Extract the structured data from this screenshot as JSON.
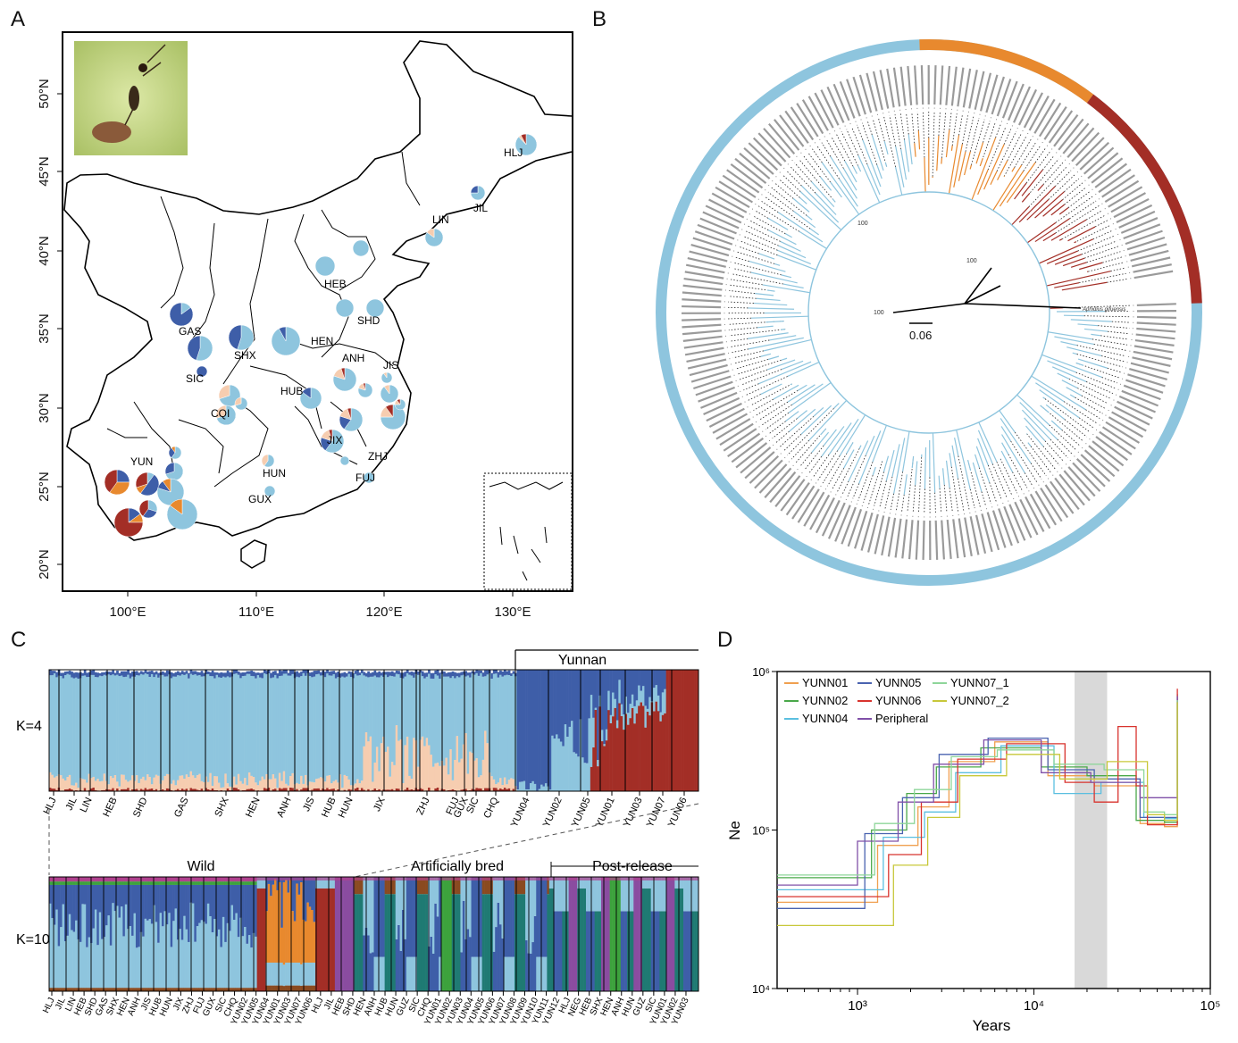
{
  "panel_letters": {
    "a": "A",
    "b": "B",
    "c": "C",
    "d": "D"
  },
  "colors": {
    "light_blue": "#8ec5de",
    "dark_blue": "#3e5ea8",
    "peach": "#f6cdb0",
    "orange": "#e8892e",
    "dark_red": "#a32e26",
    "brown": "#8a4a20",
    "green": "#3da23d",
    "teal": "#1f7a73",
    "purple": "#8a4ca0",
    "magenta": "#b0428e",
    "grey_band": "#d9d9d9"
  },
  "map": {
    "lat_labels": [
      "50°N",
      "45°N",
      "40°N",
      "35°N",
      "30°N",
      "25°N",
      "20°N"
    ],
    "lon_labels": [
      "100°E",
      "110°E",
      "120°E",
      "130°E"
    ],
    "provinces": [
      {
        "code": "HLJ",
        "comp": [
          0.88,
          0.0,
          0.04,
          0.0,
          0.08
        ]
      },
      {
        "code": "JIL",
        "comp": [
          0.75,
          0.25,
          0.0,
          0.0,
          0.0
        ]
      },
      {
        "code": "LIN",
        "comp": [
          0.85,
          0.0,
          0.15,
          0.0,
          0.0
        ]
      },
      {
        "code": "HEB",
        "comp": [
          1.0,
          0.0,
          0.0,
          0.0,
          0.0
        ]
      },
      {
        "code": "SHD",
        "comp": [
          1.0,
          0.0,
          0.0,
          0.0,
          0.0
        ]
      },
      {
        "code": "GAS",
        "comp": [
          0.15,
          0.85,
          0.0,
          0.0,
          0.0
        ]
      },
      {
        "code": "SHX",
        "comp": [
          0.55,
          0.45,
          0.0,
          0.0,
          0.0
        ]
      },
      {
        "code": "HEN",
        "comp": [
          0.92,
          0.08,
          0.0,
          0.0,
          0.0
        ]
      },
      {
        "code": "ANH",
        "comp": [
          0.8,
          0.0,
          0.15,
          0.0,
          0.05
        ]
      },
      {
        "code": "JIS",
        "comp": [
          0.9,
          0.0,
          0.1,
          0.0,
          0.0
        ]
      },
      {
        "code": "SIC",
        "comp": [
          0.0,
          1.0,
          0.0,
          0.0,
          0.0
        ]
      },
      {
        "code": "CQI",
        "comp": [
          0.7,
          0.0,
          0.3,
          0.0,
          0.0
        ]
      },
      {
        "code": "HUB",
        "comp": [
          0.85,
          0.15,
          0.0,
          0.0,
          0.0
        ]
      },
      {
        "code": "JIX",
        "comp": [
          0.6,
          0.2,
          0.15,
          0.0,
          0.05
        ]
      },
      {
        "code": "ZHJ",
        "comp": [
          0.75,
          0.0,
          0.15,
          0.0,
          0.1
        ]
      },
      {
        "code": "HUN",
        "comp": [
          0.6,
          0.0,
          0.4,
          0.0,
          0.0
        ]
      },
      {
        "code": "FUJ",
        "comp": [
          1.0,
          0.0,
          0.0,
          0.0,
          0.0
        ]
      },
      {
        "code": "GUX",
        "comp": [
          1.0,
          0.0,
          0.0,
          0.0,
          0.0
        ]
      },
      {
        "code": "YUN",
        "comp": [
          0.0,
          0.3,
          0.0,
          0.3,
          0.4
        ]
      }
    ]
  },
  "tree": {
    "scale_label": "0.06",
    "bootstrap": [
      "100",
      "100",
      "100"
    ],
    "outgroup_label": "Aphidius gifuensis"
  },
  "structure": {
    "yunnan_label": "Yunnan",
    "k4_label": "K=4",
    "k10_label": "K=10",
    "k4_pops": [
      "HLJ",
      "JIL",
      "LIN",
      "HEB",
      "SHD",
      "GAS",
      "SHX",
      "HEN",
      "ANH",
      "JIS",
      "HUB",
      "HUN",
      "JIX",
      "ZHJ",
      "FUJ",
      "GUX",
      "SIC",
      "CHQ",
      "YUN04",
      "YUN02",
      "YUN05",
      "YUN01",
      "YUN03",
      "YUN07",
      "YUN06"
    ],
    "groups": {
      "wild": "Wild",
      "bred": "Artificially bred",
      "post": "Post-release"
    },
    "k10_wild_pops": [
      "HLJ",
      "JIL",
      "LIN",
      "HEB",
      "SHD",
      "GAS",
      "SHX",
      "HEN",
      "ANH",
      "JIS",
      "HUB",
      "HUN",
      "JIX",
      "ZHJ",
      "FUJ",
      "GUX",
      "SIC",
      "CHQ",
      "YUN02",
      "YUN05",
      "YUN04",
      "YUN01",
      "YUN03",
      "YUN07",
      "YUN06"
    ],
    "k10_bred_pops": [
      "HLJ",
      "JIL",
      "HEB",
      "SHD",
      "HEN",
      "ANH",
      "HUB",
      "HUN",
      "GUZ",
      "SIC",
      "CHQ",
      "YUN01",
      "YUN02",
      "YUN03",
      "YUN04",
      "YUN05",
      "YUN06",
      "YUN07",
      "YUN08",
      "YUN09",
      "YUN10",
      "YUN11",
      "YUN12"
    ],
    "k10_post_pops": [
      "HLJ",
      "NEG",
      "HEB",
      "SHX",
      "HEN",
      "ANH",
      "HUN",
      "GUZ",
      "SIC",
      "YUN01",
      "YUN02",
      "YUN03"
    ]
  },
  "chart_data": {
    "type": "line",
    "title": "",
    "xlabel": "Years",
    "ylabel": "Ne",
    "x_scale": "log",
    "y_scale": "log",
    "xlim": [
      350,
      100000
    ],
    "ylim": [
      10000,
      1000000
    ],
    "x_ticks": [
      "10³",
      "10⁴",
      "10⁵"
    ],
    "y_ticks": [
      "10⁴",
      "10⁵",
      "10⁶"
    ],
    "shaded_band": [
      17000,
      26000
    ],
    "series": [
      {
        "name": "YUNN01",
        "color": "#f0a050",
        "x": [
          350,
          1300,
          1300,
          2200,
          2200,
          3300,
          3300,
          6000,
          6000,
          12000,
          12000,
          22000,
          22000,
          40000,
          40000,
          55000,
          55000,
          65000,
          65000
        ],
        "y": [
          35000,
          35000,
          80000,
          80000,
          140000,
          140000,
          270000,
          270000,
          360000,
          360000,
          220000,
          220000,
          190000,
          190000,
          110000,
          110000,
          105000,
          105000,
          700000
        ]
      },
      {
        "name": "YUNN02",
        "color": "#4aa84a",
        "x": [
          350,
          1200,
          1200,
          1900,
          1900,
          2800,
          2800,
          5000,
          5000,
          11000,
          11000,
          20000,
          20000,
          38000,
          38000,
          55000,
          55000,
          65000,
          65000
        ],
        "y": [
          50000,
          50000,
          100000,
          100000,
          170000,
          170000,
          250000,
          250000,
          330000,
          330000,
          250000,
          250000,
          220000,
          220000,
          115000,
          115000,
          112000,
          112000,
          650000
        ]
      },
      {
        "name": "YUNN04",
        "color": "#5bbfe0",
        "x": [
          350,
          1400,
          1400,
          2400,
          2400,
          3600,
          3600,
          6500,
          6500,
          13000,
          13000,
          24000,
          24000,
          42000,
          42000,
          55000,
          55000,
          65000,
          65000
        ],
        "y": [
          42000,
          42000,
          90000,
          90000,
          130000,
          130000,
          230000,
          230000,
          340000,
          340000,
          170000,
          170000,
          200000,
          200000,
          120000,
          120000,
          118000,
          118000,
          680000
        ]
      },
      {
        "name": "YUNN05",
        "color": "#4a63b0",
        "x": [
          350,
          1100,
          1100,
          1800,
          1800,
          2900,
          2900,
          5500,
          5500,
          12000,
          12000,
          22000,
          22000,
          40000,
          40000,
          55000,
          55000,
          65000,
          65000
        ],
        "y": [
          32000,
          32000,
          95000,
          95000,
          160000,
          160000,
          300000,
          300000,
          380000,
          380000,
          240000,
          240000,
          210000,
          210000,
          120000,
          120000,
          120000,
          120000,
          720000
        ]
      },
      {
        "name": "YUNN06",
        "color": "#d8332e",
        "x": [
          350,
          1500,
          1500,
          2300,
          2300,
          3700,
          3700,
          7000,
          7000,
          15000,
          15000,
          22000,
          22000,
          30000,
          30000,
          38000,
          38000,
          44000,
          44000,
          55000,
          55000,
          65000,
          65000
        ],
        "y": [
          38000,
          38000,
          70000,
          70000,
          150000,
          150000,
          280000,
          280000,
          350000,
          350000,
          200000,
          200000,
          150000,
          150000,
          450000,
          450000,
          190000,
          190000,
          108000,
          108000,
          108000,
          108000,
          780000
        ]
      },
      {
        "name": "Peripheral",
        "color": "#8050a8",
        "x": [
          350,
          1000,
          1000,
          1700,
          1700,
          2700,
          2700,
          5200,
          5200,
          11000,
          11000,
          21000,
          21000,
          40000,
          40000,
          55000,
          55000,
          65000,
          65000
        ],
        "y": [
          45000,
          45000,
          85000,
          85000,
          150000,
          150000,
          260000,
          260000,
          370000,
          370000,
          230000,
          230000,
          200000,
          200000,
          160000,
          160000,
          160000,
          160000,
          700000
        ]
      },
      {
        "name": "YUNN07_1",
        "color": "#8ed69a",
        "x": [
          350,
          1250,
          1250,
          2100,
          2100,
          3400,
          3400,
          6200,
          6200,
          13000,
          13000,
          25000,
          25000,
          42000,
          42000,
          55000,
          55000,
          65000,
          65000
        ],
        "y": [
          52000,
          52000,
          110000,
          110000,
          180000,
          180000,
          290000,
          290000,
          320000,
          320000,
          260000,
          260000,
          240000,
          240000,
          130000,
          130000,
          125000,
          125000,
          660000
        ]
      },
      {
        "name": "YUNN07_2",
        "color": "#c8c83a",
        "x": [
          350,
          1600,
          1600,
          2500,
          2500,
          3800,
          3800,
          7000,
          7000,
          14000,
          14000,
          26000,
          26000,
          44000,
          44000,
          55000,
          55000,
          65000,
          65000
        ],
        "y": [
          25000,
          25000,
          60000,
          60000,
          120000,
          120000,
          220000,
          220000,
          300000,
          300000,
          210000,
          210000,
          270000,
          270000,
          125000,
          125000,
          115000,
          115000,
          640000
        ]
      }
    ]
  }
}
